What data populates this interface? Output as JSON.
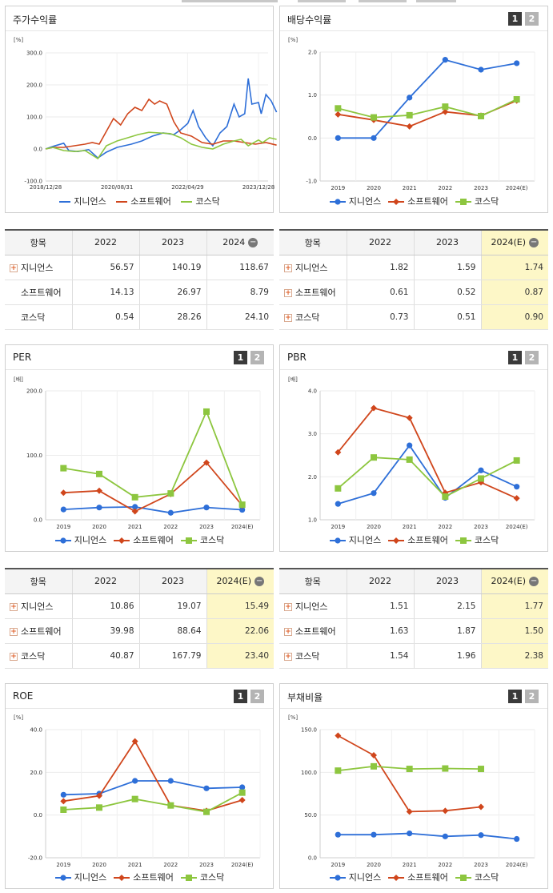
{
  "colors": {
    "genians": "#2e6fd8",
    "software": "#d0461c",
    "kosdaq": "#8dc63f"
  },
  "legend": [
    "지니언스",
    "소프트웨어",
    "코스닥"
  ],
  "panels": {
    "stock": {
      "title": "주가수익률",
      "unit": "[%]"
    },
    "dividend": {
      "title": "배당수익률",
      "unit": "[%]",
      "page1": "1",
      "page2": "2"
    },
    "per": {
      "title": "PER",
      "unit": "[배]",
      "page1": "1",
      "page2": "2"
    },
    "pbr": {
      "title": "PBR",
      "unit": "[배]",
      "page1": "1",
      "page2": "2"
    },
    "roe": {
      "title": "ROE",
      "unit": "[%]",
      "page1": "1",
      "page2": "2"
    },
    "debt": {
      "title": "부채비율",
      "unit": "[%]",
      "page1": "1",
      "page2": "2"
    }
  },
  "tables": {
    "stock": {
      "headers": [
        "항목",
        "2022",
        "2023",
        "2024"
      ],
      "rows": [
        {
          "name": "지니언스",
          "plus": true,
          "values": [
            "56.57",
            "140.19",
            "118.67"
          ]
        },
        {
          "name": "소프트웨어",
          "plus": false,
          "values": [
            "14.13",
            "26.97",
            "8.79"
          ]
        },
        {
          "name": "코스닥",
          "plus": false,
          "values": [
            "0.54",
            "28.26",
            "24.10"
          ]
        }
      ]
    },
    "dividend": {
      "headers": [
        "항목",
        "2022",
        "2023",
        "2024(E)"
      ],
      "rows": [
        {
          "name": "지니언스",
          "plus": true,
          "values": [
            "1.82",
            "1.59",
            "1.74"
          ]
        },
        {
          "name": "소프트웨어",
          "plus": true,
          "values": [
            "0.61",
            "0.52",
            "0.87"
          ]
        },
        {
          "name": "코스닥",
          "plus": true,
          "values": [
            "0.73",
            "0.51",
            "0.90"
          ]
        }
      ]
    },
    "per": {
      "headers": [
        "항목",
        "2022",
        "2023",
        "2024(E)"
      ],
      "rows": [
        {
          "name": "지니언스",
          "plus": true,
          "values": [
            "10.86",
            "19.07",
            "15.49"
          ]
        },
        {
          "name": "소프트웨어",
          "plus": true,
          "values": [
            "39.98",
            "88.64",
            "22.06"
          ]
        },
        {
          "name": "코스닥",
          "plus": true,
          "values": [
            "40.87",
            "167.79",
            "23.40"
          ]
        }
      ]
    },
    "pbr": {
      "headers": [
        "항목",
        "2022",
        "2023",
        "2024(E)"
      ],
      "rows": [
        {
          "name": "지니언스",
          "plus": true,
          "values": [
            "1.51",
            "2.15",
            "1.77"
          ]
        },
        {
          "name": "소프트웨어",
          "plus": true,
          "values": [
            "1.63",
            "1.87",
            "1.50"
          ]
        },
        {
          "name": "코스닥",
          "plus": true,
          "values": [
            "1.54",
            "1.96",
            "2.38"
          ]
        }
      ]
    }
  },
  "chart_data": [
    {
      "id": "stock",
      "type": "line",
      "title": "주가수익률",
      "ylabel": "[%]",
      "ylim": [
        -100,
        300
      ],
      "yticks": [
        -100,
        0,
        100,
        200,
        300
      ],
      "ytick_labels": [
        "-100.0",
        "0.0",
        "100.0",
        "200.0",
        "300.0"
      ],
      "xtick_labels": [
        "2018/12/28",
        "2020/08/31",
        "2022/04/29",
        "2023/12/28"
      ],
      "x_start": "2018-12-28",
      "x_end": "2024-05-31",
      "series": [
        {
          "name": "지니언스",
          "points": [
            [
              "2018-12-28",
              0
            ],
            [
              "2019-03-01",
              8
            ],
            [
              "2019-06-01",
              18
            ],
            [
              "2019-07-15",
              -5
            ],
            [
              "2019-10-01",
              -8
            ],
            [
              "2020-01-01",
              -2
            ],
            [
              "2020-03-20",
              -28
            ],
            [
              "2020-06-01",
              -10
            ],
            [
              "2020-09-01",
              5
            ],
            [
              "2021-01-01",
              15
            ],
            [
              "2021-04-01",
              25
            ],
            [
              "2021-07-01",
              40
            ],
            [
              "2021-10-01",
              50
            ],
            [
              "2022-01-01",
              45
            ],
            [
              "2022-03-01",
              60
            ],
            [
              "2022-05-01",
              80
            ],
            [
              "2022-06-15",
              120
            ],
            [
              "2022-08-01",
              70
            ],
            [
              "2022-10-01",
              35
            ],
            [
              "2022-12-01",
              10
            ],
            [
              "2023-02-01",
              50
            ],
            [
              "2023-04-01",
              70
            ],
            [
              "2023-06-01",
              140
            ],
            [
              "2023-07-15",
              100
            ],
            [
              "2023-09-01",
              110
            ],
            [
              "2023-10-01",
              220
            ],
            [
              "2023-11-01",
              140
            ],
            [
              "2023-12-28",
              145
            ],
            [
              "2024-01-20",
              110
            ],
            [
              "2024-03-01",
              170
            ],
            [
              "2024-04-15",
              150
            ],
            [
              "2024-05-31",
              115
            ]
          ]
        },
        {
          "name": "소프트웨어",
          "points": [
            [
              "2018-12-28",
              0
            ],
            [
              "2019-03-01",
              5
            ],
            [
              "2019-06-01",
              5
            ],
            [
              "2019-09-01",
              10
            ],
            [
              "2019-12-01",
              15
            ],
            [
              "2020-02-01",
              20
            ],
            [
              "2020-04-01",
              15
            ],
            [
              "2020-06-01",
              55
            ],
            [
              "2020-08-01",
              95
            ],
            [
              "2020-10-01",
              75
            ],
            [
              "2020-12-01",
              110
            ],
            [
              "2021-02-01",
              130
            ],
            [
              "2021-04-01",
              120
            ],
            [
              "2021-06-01",
              155
            ],
            [
              "2021-07-20",
              140
            ],
            [
              "2021-09-01",
              150
            ],
            [
              "2021-11-01",
              140
            ],
            [
              "2022-01-01",
              85
            ],
            [
              "2022-03-01",
              50
            ],
            [
              "2022-06-01",
              40
            ],
            [
              "2022-09-01",
              20
            ],
            [
              "2022-12-01",
              15
            ],
            [
              "2023-03-01",
              25
            ],
            [
              "2023-06-01",
              25
            ],
            [
              "2023-09-01",
              20
            ],
            [
              "2023-12-01",
              15
            ],
            [
              "2024-03-01",
              20
            ],
            [
              "2024-05-31",
              12
            ]
          ]
        },
        {
          "name": "코스닥",
          "points": [
            [
              "2018-12-28",
              0
            ],
            [
              "2019-03-01",
              5
            ],
            [
              "2019-06-01",
              -5
            ],
            [
              "2019-09-01",
              -8
            ],
            [
              "2019-12-01",
              -5
            ],
            [
              "2020-03-20",
              -30
            ],
            [
              "2020-06-01",
              10
            ],
            [
              "2020-09-01",
              25
            ],
            [
              "2020-12-01",
              35
            ],
            [
              "2021-03-01",
              45
            ],
            [
              "2021-06-01",
              52
            ],
            [
              "2021-09-01",
              50
            ],
            [
              "2021-12-01",
              48
            ],
            [
              "2022-03-01",
              35
            ],
            [
              "2022-06-01",
              15
            ],
            [
              "2022-09-01",
              5
            ],
            [
              "2022-12-01",
              0
            ],
            [
              "2023-03-01",
              15
            ],
            [
              "2023-06-01",
              25
            ],
            [
              "2023-08-01",
              30
            ],
            [
              "2023-10-01",
              10
            ],
            [
              "2023-12-28",
              28
            ],
            [
              "2024-02-01",
              20
            ],
            [
              "2024-04-01",
              35
            ],
            [
              "2024-05-31",
              30
            ]
          ]
        }
      ]
    },
    {
      "id": "dividend",
      "type": "line",
      "title": "배당수익률",
      "ylabel": "[%]",
      "ylim": [
        -1,
        2
      ],
      "yticks": [
        -1,
        0,
        1,
        2
      ],
      "ytick_labels": [
        "-1.0",
        "0.0",
        "1.0",
        "2.0"
      ],
      "categories": [
        "2019",
        "2020",
        "2021",
        "2022",
        "2023",
        "2024(E)"
      ],
      "series": [
        {
          "name": "지니언스",
          "values": [
            0.0,
            0.0,
            0.94,
            1.82,
            1.59,
            1.74
          ]
        },
        {
          "name": "소프트웨어",
          "values": [
            0.55,
            0.42,
            0.27,
            0.61,
            0.52,
            0.87
          ]
        },
        {
          "name": "코스닥",
          "values": [
            0.69,
            0.48,
            0.53,
            0.73,
            0.51,
            0.9
          ]
        }
      ]
    },
    {
      "id": "per",
      "type": "line",
      "title": "PER",
      "ylabel": "[배]",
      "ylim": [
        0,
        200
      ],
      "yticks": [
        0,
        100,
        200
      ],
      "ytick_labels": [
        "0.0",
        "100.0",
        "200.0"
      ],
      "categories": [
        "2019",
        "2020",
        "2021",
        "2022",
        "2023",
        "2024(E)"
      ],
      "series": [
        {
          "name": "지니언스",
          "values": [
            16,
            19,
            20,
            10.86,
            19.07,
            15.49
          ]
        },
        {
          "name": "소프트웨어",
          "values": [
            42,
            45,
            13,
            39.98,
            88.64,
            22.06
          ]
        },
        {
          "name": "코스닥",
          "values": [
            80,
            71,
            35,
            40.87,
            167.79,
            23.4
          ]
        }
      ]
    },
    {
      "id": "pbr",
      "type": "line",
      "title": "PBR",
      "ylabel": "[배]",
      "ylim": [
        1,
        4
      ],
      "yticks": [
        1,
        2,
        3,
        4
      ],
      "ytick_labels": [
        "1.0",
        "2.0",
        "3.0",
        "4.0"
      ],
      "categories": [
        "2019",
        "2020",
        "2021",
        "2022",
        "2023",
        "2024(E)"
      ],
      "series": [
        {
          "name": "지니언스",
          "values": [
            1.37,
            1.62,
            2.73,
            1.51,
            2.15,
            1.77
          ]
        },
        {
          "name": "소프트웨어",
          "values": [
            2.57,
            3.6,
            3.37,
            1.63,
            1.87,
            1.5
          ]
        },
        {
          "name": "코스닥",
          "values": [
            1.73,
            2.45,
            2.4,
            1.54,
            1.96,
            2.38
          ]
        }
      ]
    },
    {
      "id": "roe",
      "type": "line",
      "title": "ROE",
      "ylabel": "[%]",
      "ylim": [
        -20,
        40
      ],
      "yticks": [
        -20,
        0,
        20,
        40
      ],
      "ytick_labels": [
        "-20.0",
        "0.0",
        "20.0",
        "40.0"
      ],
      "categories": [
        "2019",
        "2020",
        "2021",
        "2022",
        "2023",
        "2024(E)"
      ],
      "series": [
        {
          "name": "지니언스",
          "values": [
            9.5,
            10,
            16,
            16,
            12.5,
            13
          ]
        },
        {
          "name": "소프트웨어",
          "values": [
            6.5,
            9,
            34.5,
            4.5,
            2,
            7
          ]
        },
        {
          "name": "코스닥",
          "values": [
            2.5,
            3.5,
            7.5,
            4.5,
            1.5,
            10.5
          ]
        }
      ]
    },
    {
      "id": "debt",
      "type": "line",
      "title": "부채비율",
      "ylabel": "[%]",
      "ylim": [
        0,
        150
      ],
      "yticks": [
        0,
        50,
        100,
        150
      ],
      "ytick_labels": [
        "0.0",
        "50.0",
        "100.0",
        "150.0"
      ],
      "categories": [
        "2019",
        "2020",
        "2021",
        "2022",
        "2023",
        "2024(E)"
      ],
      "series": [
        {
          "name": "지니언스",
          "values": [
            27,
            27,
            28.5,
            25,
            26.5,
            22
          ]
        },
        {
          "name": "소프트웨어",
          "values": [
            143,
            120,
            54,
            55,
            59.5,
            null
          ]
        },
        {
          "name": "코스닥",
          "values": [
            102,
            107,
            104,
            104.5,
            104,
            null
          ]
        }
      ]
    }
  ]
}
